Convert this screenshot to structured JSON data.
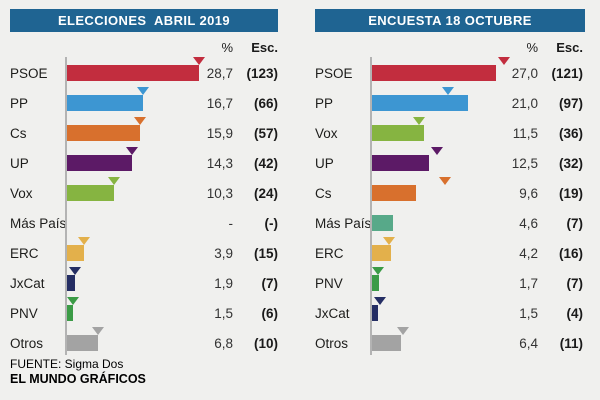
{
  "page": {
    "background_color": "#f0f0ee",
    "header_color": "#1f6492",
    "axis_line_color": "#b3b3b3"
  },
  "col_headers": {
    "percent": "%",
    "seats": "Esc."
  },
  "footer": {
    "source": "FUENTE: Sigma Dos",
    "credit": "EL MUNDO GRÁFICOS"
  },
  "chart_data": [
    {
      "type": "bar",
      "orientation": "horizontal",
      "title": "ELECCIONES  ABRIL 2019",
      "xlabel": "",
      "unit": "%",
      "xlim": [
        0,
        29
      ],
      "grid": false,
      "categories": [
        "PSOE",
        "PP",
        "Cs",
        "UP",
        "Vox",
        "Más País",
        "ERC",
        "JxCat",
        "PNV",
        "Otros"
      ],
      "values": [
        28.7,
        16.7,
        15.9,
        14.3,
        10.3,
        null,
        3.9,
        1.9,
        1.5,
        6.8
      ],
      "value_labels": [
        "28,7",
        "16,7",
        "15,9",
        "14,3",
        "10,3",
        "-",
        "3,9",
        "1,9",
        "1,5",
        "6,8"
      ],
      "seats": [
        123,
        66,
        57,
        42,
        24,
        null,
        15,
        7,
        6,
        10
      ],
      "seat_labels": [
        "(123)",
        "(66)",
        "(57)",
        "(42)",
        "(24)",
        "(-)",
        "(15)",
        "(7)",
        "(6)",
        "(10)"
      ],
      "colors": [
        "#c22d3e",
        "#3d96d2",
        "#d8702d",
        "#5c1a66",
        "#86b441",
        "#57a989",
        "#e3b04b",
        "#252e64",
        "#3b9b46",
        "#a3a3a3"
      ],
      "marker_values": [
        28.7,
        16.7,
        15.9,
        14.3,
        10.3,
        null,
        3.9,
        1.9,
        1.5,
        6.8
      ]
    },
    {
      "type": "bar",
      "orientation": "horizontal",
      "title": "ENCUESTA 18 OCTUBRE",
      "xlabel": "",
      "unit": "%",
      "xlim": [
        0,
        29
      ],
      "grid": false,
      "categories": [
        "PSOE",
        "PP",
        "Vox",
        "UP",
        "Cs",
        "Más País",
        "ERC",
        "PNV",
        "JxCat",
        "Otros"
      ],
      "values": [
        27.0,
        21.0,
        11.5,
        12.5,
        9.6,
        4.6,
        4.2,
        1.7,
        1.5,
        6.4
      ],
      "value_labels": [
        "27,0",
        "21,0",
        "11,5",
        "12,5",
        "9,6",
        "4,6",
        "4,2",
        "1,7",
        "1,5",
        "6,4"
      ],
      "seats": [
        121,
        97,
        36,
        32,
        19,
        7,
        16,
        7,
        4,
        11
      ],
      "seat_labels": [
        "(121)",
        "(97)",
        "(36)",
        "(32)",
        "(19)",
        "(7)",
        "(16)",
        "(7)",
        "(4)",
        "(11)"
      ],
      "colors": [
        "#c22d3e",
        "#3d96d2",
        "#86b441",
        "#5c1a66",
        "#d8702d",
        "#57a989",
        "#e3b04b",
        "#3b9b46",
        "#252e64",
        "#a3a3a3"
      ],
      "marker_values": [
        28.7,
        16.7,
        10.3,
        14.3,
        15.9,
        null,
        3.9,
        1.5,
        1.9,
        6.8
      ]
    }
  ]
}
